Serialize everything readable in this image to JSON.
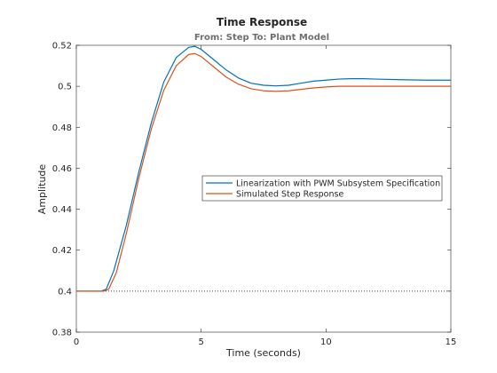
{
  "chart_data": {
    "type": "line",
    "title": "Time Response",
    "subtitle": "From: Step  To: Plant Model",
    "xlabel": "Time (seconds)",
    "ylabel": "Amplitude",
    "xlim": [
      0,
      15
    ],
    "ylim": [
      0.38,
      0.52
    ],
    "xticks": [
      0,
      5,
      10,
      15
    ],
    "xtick_labels": [
      "0",
      "5",
      "10",
      "15"
    ],
    "yticks": [
      0.38,
      0.4,
      0.42,
      0.44,
      0.46,
      0.48,
      0.5,
      0.52
    ],
    "ytick_labels": [
      "0.38",
      "0.4",
      "0.42",
      "0.44",
      "0.46",
      "0.48",
      "0.5",
      "0.52"
    ],
    "grid": false,
    "legend_position": "center-right",
    "reference_line": {
      "y": 0.4,
      "style": "dotted",
      "color": "#000000"
    },
    "series": [
      {
        "name": "Linearization with PWM Subsystem Specification",
        "color": "#0072bd",
        "x": [
          0,
          1.0,
          1.2,
          1.5,
          2.0,
          2.5,
          3.0,
          3.5,
          4.0,
          4.5,
          4.75,
          5.0,
          5.5,
          6.0,
          6.5,
          7.0,
          7.5,
          8.0,
          8.5,
          9.0,
          9.5,
          10.0,
          10.5,
          11.0,
          11.5,
          12.0,
          13.0,
          14.0,
          15.0
        ],
        "y": [
          0.4,
          0.4,
          0.401,
          0.41,
          0.432,
          0.458,
          0.482,
          0.502,
          0.514,
          0.519,
          0.5195,
          0.518,
          0.513,
          0.508,
          0.504,
          0.5015,
          0.5005,
          0.5002,
          0.5005,
          0.5015,
          0.5025,
          0.503,
          0.5035,
          0.5037,
          0.5037,
          0.5035,
          0.5032,
          0.503,
          0.503
        ]
      },
      {
        "name": "Simulated Step Response",
        "color": "#d95319",
        "x": [
          0,
          1.1,
          1.3,
          1.6,
          2.0,
          2.5,
          3.0,
          3.5,
          4.0,
          4.5,
          4.75,
          5.0,
          5.5,
          6.0,
          6.5,
          7.0,
          7.5,
          8.0,
          8.5,
          9.0,
          9.5,
          10.0,
          10.5,
          11.0,
          12.0,
          13.0,
          14.0,
          15.0
        ],
        "y": [
          0.4,
          0.4,
          0.401,
          0.409,
          0.428,
          0.455,
          0.479,
          0.498,
          0.51,
          0.5155,
          0.516,
          0.5145,
          0.5095,
          0.5045,
          0.501,
          0.4988,
          0.4978,
          0.4975,
          0.4978,
          0.4985,
          0.4992,
          0.4997,
          0.5,
          0.5,
          0.5,
          0.5,
          0.5,
          0.5
        ]
      }
    ]
  }
}
